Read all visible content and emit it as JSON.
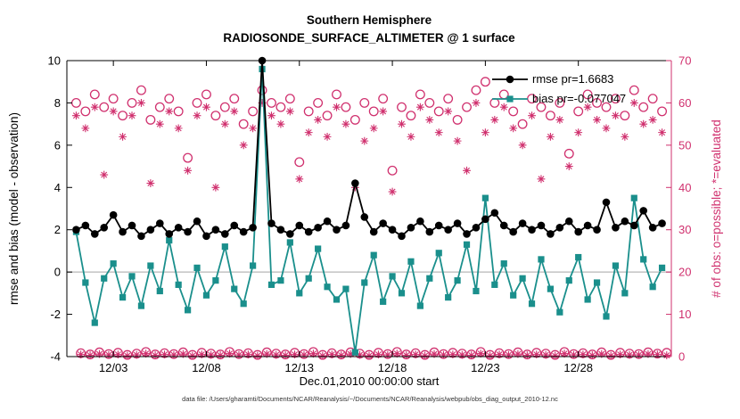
{
  "footer_note": "data file: /Users/gharamti/Documents/NCAR/Reanalysis/~/Documents/NCAR/Reanalysis/webpub/obs_diag_output_2010-12.nc",
  "legend": {
    "items": [
      {
        "label": "rmse pr=1.6683",
        "series": "rmse"
      },
      {
        "label": "bias pr=-0.077047",
        "series": "bias"
      }
    ]
  },
  "colors": {
    "rmse": "#000000",
    "bias": "#1a8f8c",
    "obs": "#d0306e",
    "zero_line": "#c8c8c8",
    "axis": "#000000",
    "background": "#ffffff"
  },
  "chart_data": {
    "type": "line",
    "title": "Southern Hemisphere",
    "subtitle": "RADIOSONDE_SURFACE_ALTIMETER @ 1 surface",
    "xlabel": "Dec.01,2010 00:00:00 start",
    "ylabel_left": "rmse and bias (model - observation)",
    "ylabel_right": "# of obs: o=possible; *=evaluated",
    "x_unit": "day of month, December 2010 (12-hourly bins)",
    "xlim": [
      0.5,
      33
    ],
    "ylim_left": [
      -4,
      10
    ],
    "ylim_right": [
      0,
      70
    ],
    "xticks": [
      {
        "day": 3,
        "label": "12/03"
      },
      {
        "day": 8,
        "label": "12/08"
      },
      {
        "day": 13,
        "label": "12/13"
      },
      {
        "day": 18,
        "label": "12/18"
      },
      {
        "day": 23,
        "label": "12/23"
      },
      {
        "day": 28,
        "label": "12/28"
      }
    ],
    "yticks_left": [
      -4,
      -2,
      0,
      2,
      4,
      6,
      8,
      10
    ],
    "yticks_right": [
      0,
      10,
      20,
      30,
      40,
      50,
      60,
      70
    ],
    "zero_line": 0,
    "legend_position": "top-right-inside",
    "grid": false,
    "series": [
      {
        "id": "obs-possible-offsynoptic",
        "name": "possible (off-synoptic times)",
        "axis": "right",
        "marker": "open-circle",
        "draw_line": false,
        "color": "#d0306e",
        "x": {
          "start": 1.25,
          "step": 0.5,
          "count": 64
        },
        "values": [
          0.8,
          0.5,
          1.0,
          0.6,
          0.9,
          0.4,
          0.7,
          1.1,
          0.5,
          0.8,
          0.6,
          1.0,
          0.4,
          0.9,
          0.7,
          0.5,
          1.1,
          0.6,
          0.8,
          0.4,
          1.0,
          0.7,
          0.5,
          0.9,
          0.6,
          1.1,
          0.4,
          0.8,
          0.5,
          1.0,
          0.7,
          0.4,
          0.9,
          0.6,
          1.1,
          0.5,
          0.8,
          0.4,
          1.0,
          0.6,
          0.9,
          0.7,
          0.5,
          1.1,
          0.4,
          0.8,
          0.6,
          1.0,
          0.5,
          0.9,
          0.7,
          0.4,
          1.1,
          0.6,
          0.8,
          0.5,
          1.0,
          0.4,
          0.9,
          0.7,
          0.6,
          1.0,
          0.7,
          0.9
        ]
      },
      {
        "id": "obs-evaluated-offsynoptic",
        "name": "evaluated (off-synoptic times)",
        "axis": "right",
        "marker": "asterisk",
        "draw_line": false,
        "color": "#d0306e",
        "x": {
          "start": 1.25,
          "step": 0.5,
          "count": 64
        },
        "values": [
          0.5,
          0.3,
          0.6,
          0.4,
          0.5,
          0.2,
          0.4,
          0.7,
          0.3,
          0.5,
          0.4,
          0.6,
          0.2,
          0.5,
          0.4,
          0.3,
          0.7,
          0.4,
          0.5,
          0.2,
          0.6,
          0.4,
          0.3,
          0.5,
          0.4,
          0.7,
          0.2,
          0.5,
          0.3,
          0.6,
          0.4,
          0.2,
          0.5,
          0.4,
          0.7,
          0.3,
          0.5,
          0.2,
          0.6,
          0.4,
          0.5,
          0.4,
          0.3,
          0.7,
          0.2,
          0.5,
          0.4,
          0.6,
          0.3,
          0.5,
          0.4,
          0.2,
          0.7,
          0.4,
          0.5,
          0.3,
          0.6,
          0.2,
          0.5,
          0.4,
          0.4,
          0.6,
          0.5,
          0.3
        ]
      },
      {
        "id": "obs-possible",
        "name": "possible",
        "axis": "right",
        "marker": "open-circle",
        "draw_line": false,
        "color": "#d0306e",
        "x": {
          "start": 1.0,
          "step": 0.5,
          "count": 64
        },
        "values": [
          60,
          58,
          62,
          59,
          61,
          57,
          60,
          63,
          56,
          59,
          61,
          58,
          47,
          60,
          62,
          57,
          59,
          61,
          55,
          58,
          63,
          60,
          59,
          61,
          46,
          58,
          60,
          57,
          62,
          59,
          56,
          60,
          58,
          61,
          44,
          59,
          57,
          62,
          60,
          58,
          61,
          56,
          59,
          63,
          65,
          60,
          62,
          58,
          55,
          61,
          59,
          57,
          60,
          48,
          58,
          62,
          60,
          59,
          61,
          57,
          63,
          59,
          61,
          58
        ]
      },
      {
        "id": "obs-evaluated",
        "name": "evaluated",
        "axis": "right",
        "marker": "asterisk",
        "draw_line": false,
        "color": "#d0306e",
        "x": {
          "start": 1.0,
          "step": 0.5,
          "count": 64
        },
        "values": [
          57,
          54,
          59,
          43,
          58,
          52,
          57,
          60,
          41,
          55,
          58,
          54,
          44,
          57,
          59,
          40,
          55,
          58,
          50,
          54,
          60,
          57,
          55,
          58,
          42,
          53,
          56,
          52,
          59,
          55,
          40,
          51,
          54,
          58,
          39,
          55,
          52,
          59,
          56,
          53,
          58,
          51,
          44,
          60,
          53,
          56,
          59,
          54,
          50,
          57,
          42,
          52,
          56,
          45,
          53,
          59,
          56,
          54,
          57,
          52,
          60,
          55,
          56,
          53
        ]
      },
      {
        "id": "bias",
        "name": "bias",
        "axis": "left",
        "marker": "filled-square",
        "draw_line": true,
        "color": "#1a8f8c",
        "x": {
          "start": 1.0,
          "step": 0.5,
          "count": 64
        },
        "values": [
          1.9,
          -0.5,
          -2.4,
          -0.3,
          0.4,
          -1.2,
          -0.2,
          -1.6,
          0.3,
          -0.9,
          1.5,
          -0.6,
          -1.8,
          0.2,
          -1.1,
          -0.4,
          1.2,
          -0.8,
          -1.5,
          0.3,
          9.6,
          -0.6,
          -0.4,
          1.4,
          -1.0,
          -0.3,
          1.1,
          -0.7,
          -1.3,
          -0.8,
          -3.8,
          -0.5,
          0.8,
          -1.4,
          -0.2,
          -1.0,
          0.5,
          -1.6,
          -0.3,
          0.9,
          -1.2,
          -0.4,
          1.3,
          -0.9,
          3.5,
          -0.6,
          0.4,
          -1.1,
          -0.3,
          -1.5,
          0.6,
          -0.8,
          -1.9,
          -0.4,
          0.7,
          -1.3,
          -0.5,
          -2.1,
          0.3,
          -1.0,
          3.5,
          0.6,
          -0.7,
          0.2
        ]
      },
      {
        "id": "rmse",
        "name": "rmse",
        "axis": "left",
        "marker": "filled-circle",
        "draw_line": true,
        "color": "#000000",
        "x": {
          "start": 1.0,
          "step": 0.5,
          "count": 64
        },
        "values": [
          2.0,
          2.2,
          1.8,
          2.1,
          2.7,
          1.9,
          2.2,
          1.7,
          2.0,
          2.3,
          1.8,
          2.1,
          1.9,
          2.4,
          1.7,
          2.0,
          1.8,
          2.2,
          1.9,
          2.1,
          10.0,
          2.3,
          2.0,
          1.8,
          2.2,
          1.9,
          2.1,
          2.4,
          2.0,
          2.2,
          4.2,
          2.6,
          1.9,
          2.3,
          2.0,
          1.7,
          2.1,
          2.4,
          1.9,
          2.2,
          2.0,
          2.3,
          1.8,
          2.1,
          2.5,
          2.8,
          2.2,
          1.9,
          2.3,
          2.0,
          2.2,
          1.8,
          2.1,
          2.4,
          1.9,
          2.2,
          2.0,
          3.3,
          2.1,
          2.4,
          2.2,
          2.9,
          2.1,
          2.3
        ]
      }
    ]
  }
}
